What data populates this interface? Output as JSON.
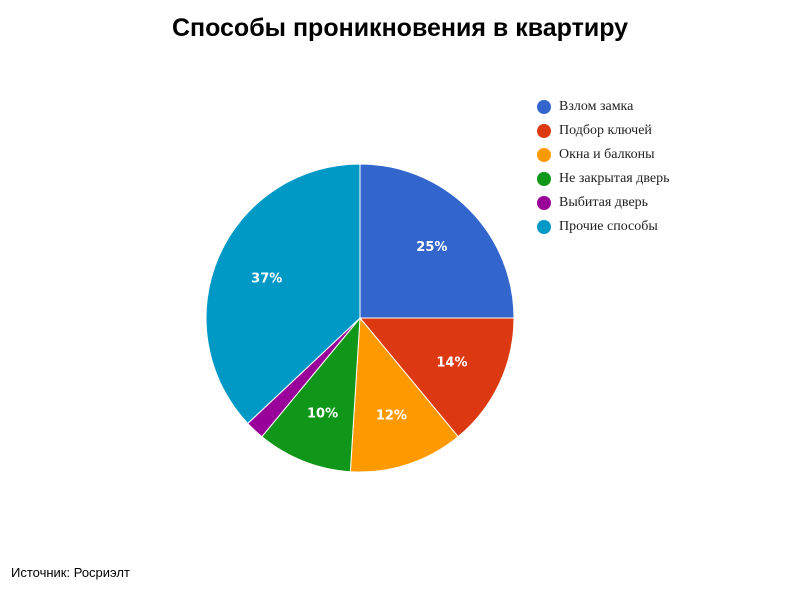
{
  "chart_data": {
    "type": "pie",
    "title": "Способы проникновения в квартиру",
    "categories": [
      "Взлом замка",
      "Подбор ключей",
      "Окна и балконы",
      "Не закрытая дверь",
      "Выбитая дверь",
      "Прочие способы"
    ],
    "values": [
      25,
      14,
      12,
      10,
      2,
      37
    ],
    "data_labels": [
      "25%",
      "14%",
      "12%",
      "10%",
      "",
      "37%"
    ],
    "colors": [
      "#3366cc",
      "#dc3912",
      "#ff9900",
      "#109618",
      "#990099",
      "#0099c6"
    ],
    "legend_position": "top-right"
  },
  "source_text": "Источник: Росриэлт"
}
